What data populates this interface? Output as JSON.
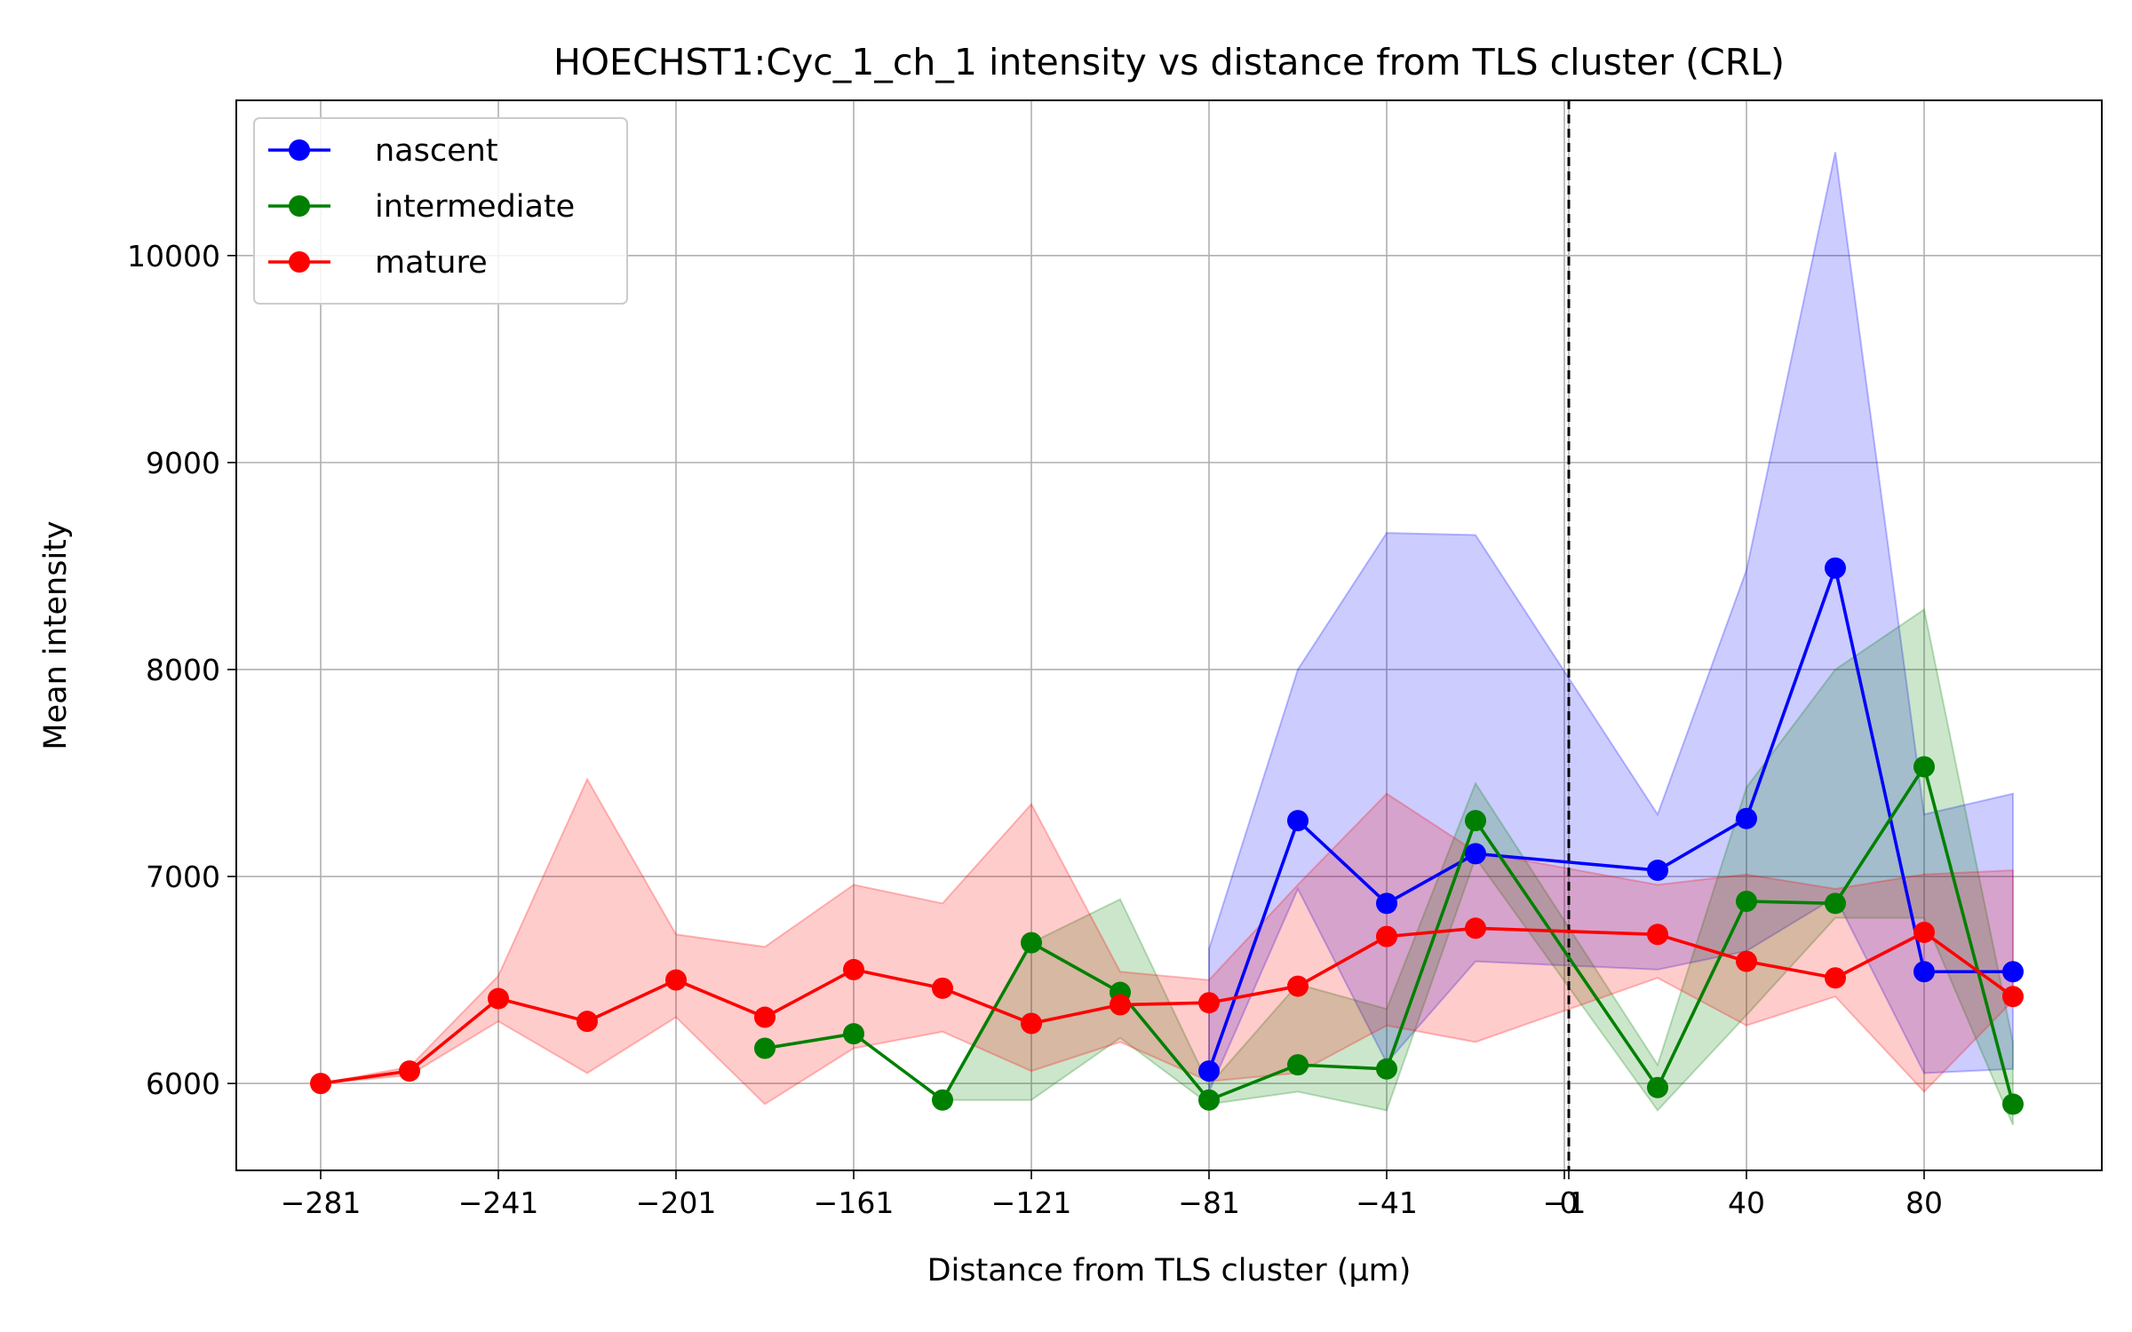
{
  "chart_data": {
    "type": "line",
    "title": "HOECHST1:Cyc_1_ch_1 intensity vs distance from TLS cluster (CRL)",
    "xlabel": "Distance from TLS cluster (μm)",
    "ylabel": "Mean intensity",
    "xlim": [
      -300,
      120
    ],
    "ylim": [
      5580,
      10750
    ],
    "grid": true,
    "legend_position": "top-left",
    "reference_line": {
      "x": 0,
      "style": "dashed",
      "color": "#000000"
    },
    "x_tick_values": [
      -281,
      -241,
      -201,
      -161,
      -121,
      -81,
      -41,
      -1,
      0,
      40,
      80
    ],
    "x_tick_labels": [
      "−281",
      "−241",
      "−201",
      "−161",
      "−121",
      "−81",
      "−41",
      "−1",
      "0",
      "40",
      "80"
    ],
    "y_tick_values": [
      6000,
      7000,
      8000,
      9000,
      10000
    ],
    "y_tick_labels": [
      "6000",
      "7000",
      "8000",
      "9000",
      "10000"
    ],
    "series": [
      {
        "name": "nascent",
        "color": "#0000ff",
        "x": [
          -81,
          -61,
          -41,
          -21,
          20,
          40,
          60,
          80,
          100
        ],
        "y": [
          6060,
          7270,
          6870,
          7110,
          7030,
          7280,
          8490,
          6540,
          6540
        ],
        "band_upper": [
          6650,
          8000,
          8660,
          8650,
          7300,
          8480,
          10500,
          7300,
          7400
        ],
        "band_lower": [
          5960,
          6940,
          6100,
          6590,
          6550,
          6640,
          6900,
          6050,
          6070
        ]
      },
      {
        "name": "intermediate",
        "color": "#008000",
        "x": [
          -181,
          -161,
          -141,
          -121,
          -101,
          -81,
          -61,
          -41,
          -21,
          20,
          40,
          60,
          80,
          100
        ],
        "y": [
          6170,
          6240,
          5920,
          6680,
          6440,
          5920,
          6090,
          6070,
          7270,
          5980,
          6880,
          6870,
          7530,
          5900
        ],
        "band_upper": [
          6170,
          6240,
          5920,
          6680,
          6890,
          5990,
          6480,
          6360,
          7450,
          6090,
          7430,
          8000,
          8290,
          6200
        ],
        "band_lower": [
          6170,
          6240,
          5920,
          5920,
          6220,
          5900,
          5960,
          5870,
          7090,
          5870,
          6330,
          6800,
          6800,
          5800
        ]
      },
      {
        "name": "mature",
        "color": "#ff0000",
        "x": [
          -281,
          -261,
          -241,
          -221,
          -201,
          -181,
          -161,
          -141,
          -121,
          -101,
          -81,
          -61,
          -41,
          -21,
          20,
          40,
          60,
          80,
          100
        ],
        "y": [
          6000,
          6060,
          6410,
          6300,
          6500,
          6320,
          6550,
          6460,
          6290,
          6380,
          6390,
          6470,
          6710,
          6750,
          6720,
          6590,
          6510,
          6730,
          6420
        ],
        "band_upper": [
          6000,
          6080,
          6520,
          7470,
          6720,
          6660,
          6960,
          6870,
          7350,
          6540,
          6500,
          6960,
          7400,
          7120,
          6960,
          7010,
          6940,
          7010,
          7030
        ],
        "band_lower": [
          6000,
          6040,
          6300,
          6050,
          6320,
          5900,
          6170,
          6250,
          6060,
          6200,
          6010,
          6050,
          6280,
          6200,
          6510,
          6280,
          6420,
          5960,
          6400
        ]
      }
    ]
  }
}
